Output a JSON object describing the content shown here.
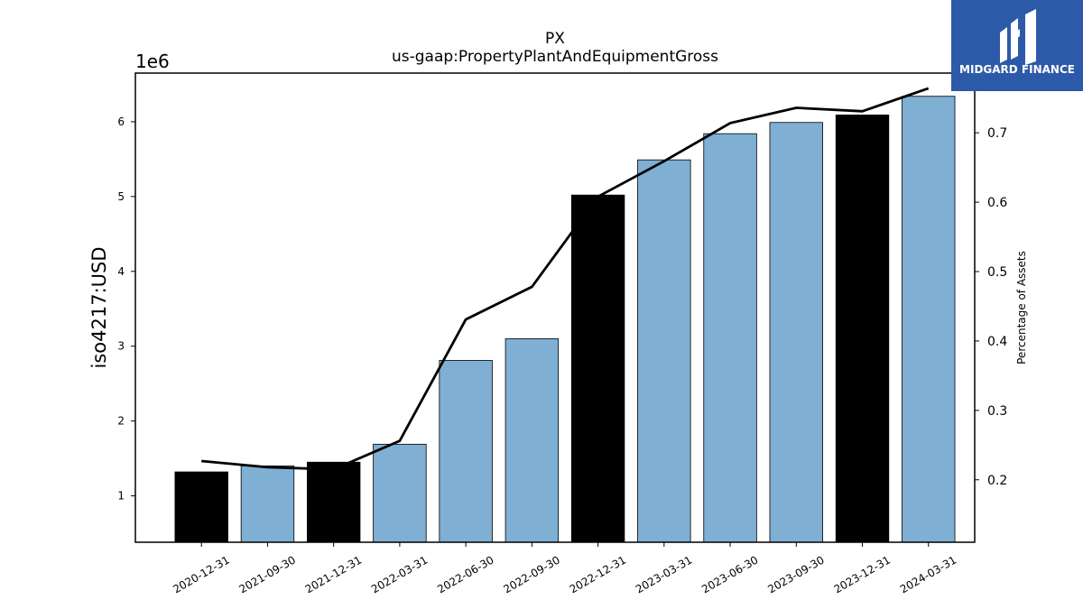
{
  "logo": {
    "text": "MIDGARD FINANCE",
    "bg": "#2d5aa8",
    "icon": "midgard-m-logo-icon"
  },
  "chart_data": {
    "type": "bar",
    "title": "PX",
    "subtitle": "us-gaap:PropertyPlantAndEquipmentGross",
    "ylabel": "iso4217:USD",
    "y_offset_label": "1e6",
    "y2label": "Percentage of Assets",
    "categories": [
      "2020-12-31",
      "2021-09-30",
      "2021-12-31",
      "2022-03-31",
      "2022-06-30",
      "2022-09-30",
      "2022-12-31",
      "2023-03-31",
      "2023-06-30",
      "2023-09-30",
      "2023-12-31",
      "2024-03-31"
    ],
    "values": [
      1320000,
      1400000,
      1450000,
      1690000,
      2810000,
      3100000,
      5020000,
      5490000,
      5840000,
      5990000,
      6090000,
      6340000
    ],
    "bar_colors": [
      "#000000",
      "#7fafd3",
      "#000000",
      "#7fafd3",
      "#7fafd3",
      "#7fafd3",
      "#000000",
      "#7fafd3",
      "#7fafd3",
      "#7fafd3",
      "#000000",
      "#7fafd3"
    ],
    "line_series": {
      "axis": "right",
      "color": "#000000",
      "values": [
        0.227,
        0.218,
        0.215,
        0.256,
        0.431,
        0.478,
        0.608,
        0.659,
        0.714,
        0.736,
        0.731,
        0.764
      ]
    },
    "ylim": [
      380000,
      6650000
    ],
    "yticks": [
      1,
      2,
      3,
      4,
      5,
      6
    ],
    "y2lim": [
      0.11,
      0.786
    ],
    "y2ticks": [
      0.2,
      0.3,
      0.4,
      0.5,
      0.6,
      0.7
    ],
    "grid": false,
    "legend": "none"
  }
}
